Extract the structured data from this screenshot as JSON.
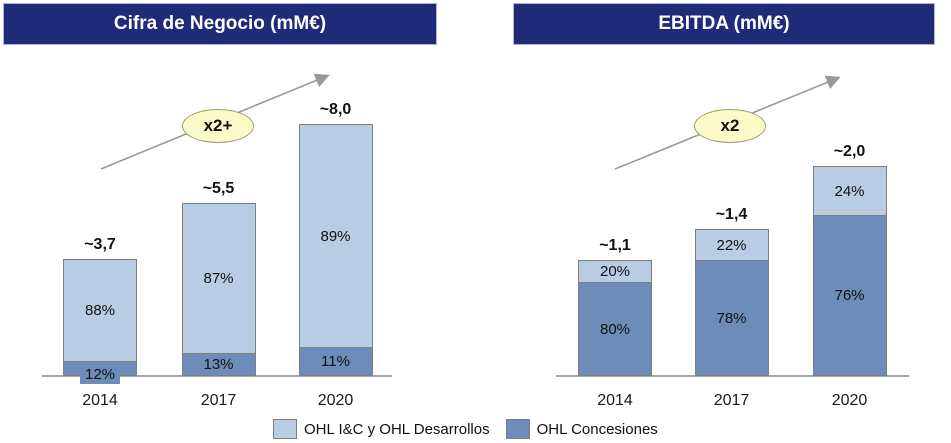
{
  "chart_data": [
    {
      "type": "bar",
      "stacked": true,
      "title": "Cifra de Negocio (mM€)",
      "unit": "mM€",
      "growth_annotation": "x2+",
      "categories": [
        "2014",
        "2017",
        "2020"
      ],
      "totals": [
        3.7,
        5.5,
        8.0
      ],
      "total_labels": [
        "~3,7",
        "~5,5",
        "~8,0"
      ],
      "series": [
        {
          "name": "OHL I&C y OHL Desarrollos",
          "position": "top",
          "percent": [
            88,
            87,
            89
          ],
          "color": "#b8cce4"
        },
        {
          "name": "OHL Concesiones",
          "position": "bottom",
          "percent": [
            12,
            13,
            11
          ],
          "color": "#6d8cba"
        }
      ],
      "legend_position": "bottom",
      "grid": false
    },
    {
      "type": "bar",
      "stacked": true,
      "title": "EBITDA (mM€)",
      "unit": "mM€",
      "growth_annotation": "x2",
      "categories": [
        "2014",
        "2017",
        "2020"
      ],
      "totals": [
        1.1,
        1.4,
        2.0
      ],
      "total_labels": [
        "~1,1",
        "~1,4",
        "~2,0"
      ],
      "series": [
        {
          "name": "OHL I&C y OHL Desarrollos",
          "position": "top",
          "percent": [
            20,
            22,
            24
          ],
          "color": "#b8cce4"
        },
        {
          "name": "OHL Concesiones",
          "position": "bottom",
          "percent": [
            80,
            78,
            76
          ],
          "color": "#6d8cba"
        }
      ],
      "legend_position": "bottom",
      "grid": false
    }
  ],
  "legend": {
    "items": [
      {
        "label": "OHL I&C y OHL Desarrollos",
        "color": "#b8cce4"
      },
      {
        "label": "OHL Concesiones",
        "color": "#6d8cba"
      }
    ]
  },
  "colors": {
    "header_bg": "#1f2a78",
    "header_text": "#ffffff",
    "series_light": "#b8cce4",
    "series_dark": "#6d8cba",
    "bar_border": "#7f7f7f",
    "axis": "#a6a6a6",
    "arrow": "#999999",
    "ellipse_fill": "#fbfbc9",
    "ellipse_border": "#9b9b6e"
  }
}
